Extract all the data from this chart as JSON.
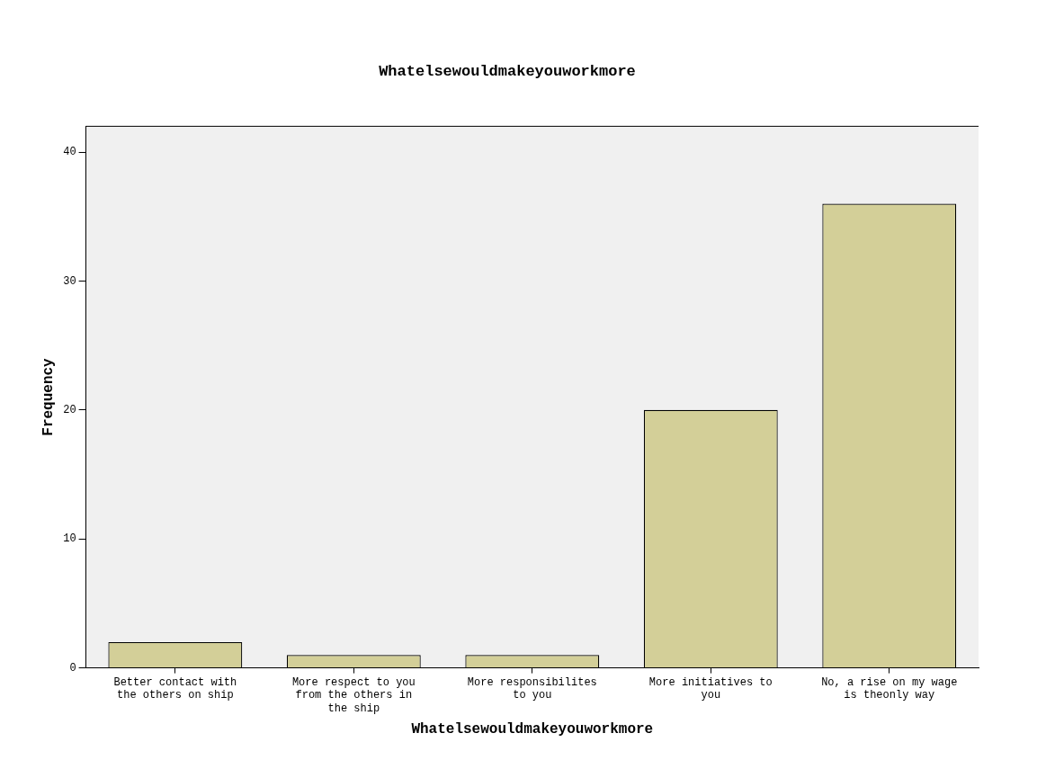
{
  "chart_data": {
    "type": "bar",
    "title": "Whatelsewouldmakeyouworkmore",
    "xlabel": "Whatelsewouldmakeyouworkmore",
    "ylabel": "Frequency",
    "categories": [
      "Better contact with the others on ship",
      "More respect to you from the others in the ship",
      "More responsibilites to you",
      "More initiatives to you",
      "No, a rise on my wage is theonly way"
    ],
    "values": [
      2,
      1,
      1,
      20,
      36
    ],
    "color": "#d3cf98",
    "ylim": [
      0,
      42
    ],
    "yticks": [
      0,
      10,
      20,
      30,
      40
    ],
    "grid": false,
    "legend": false
  }
}
